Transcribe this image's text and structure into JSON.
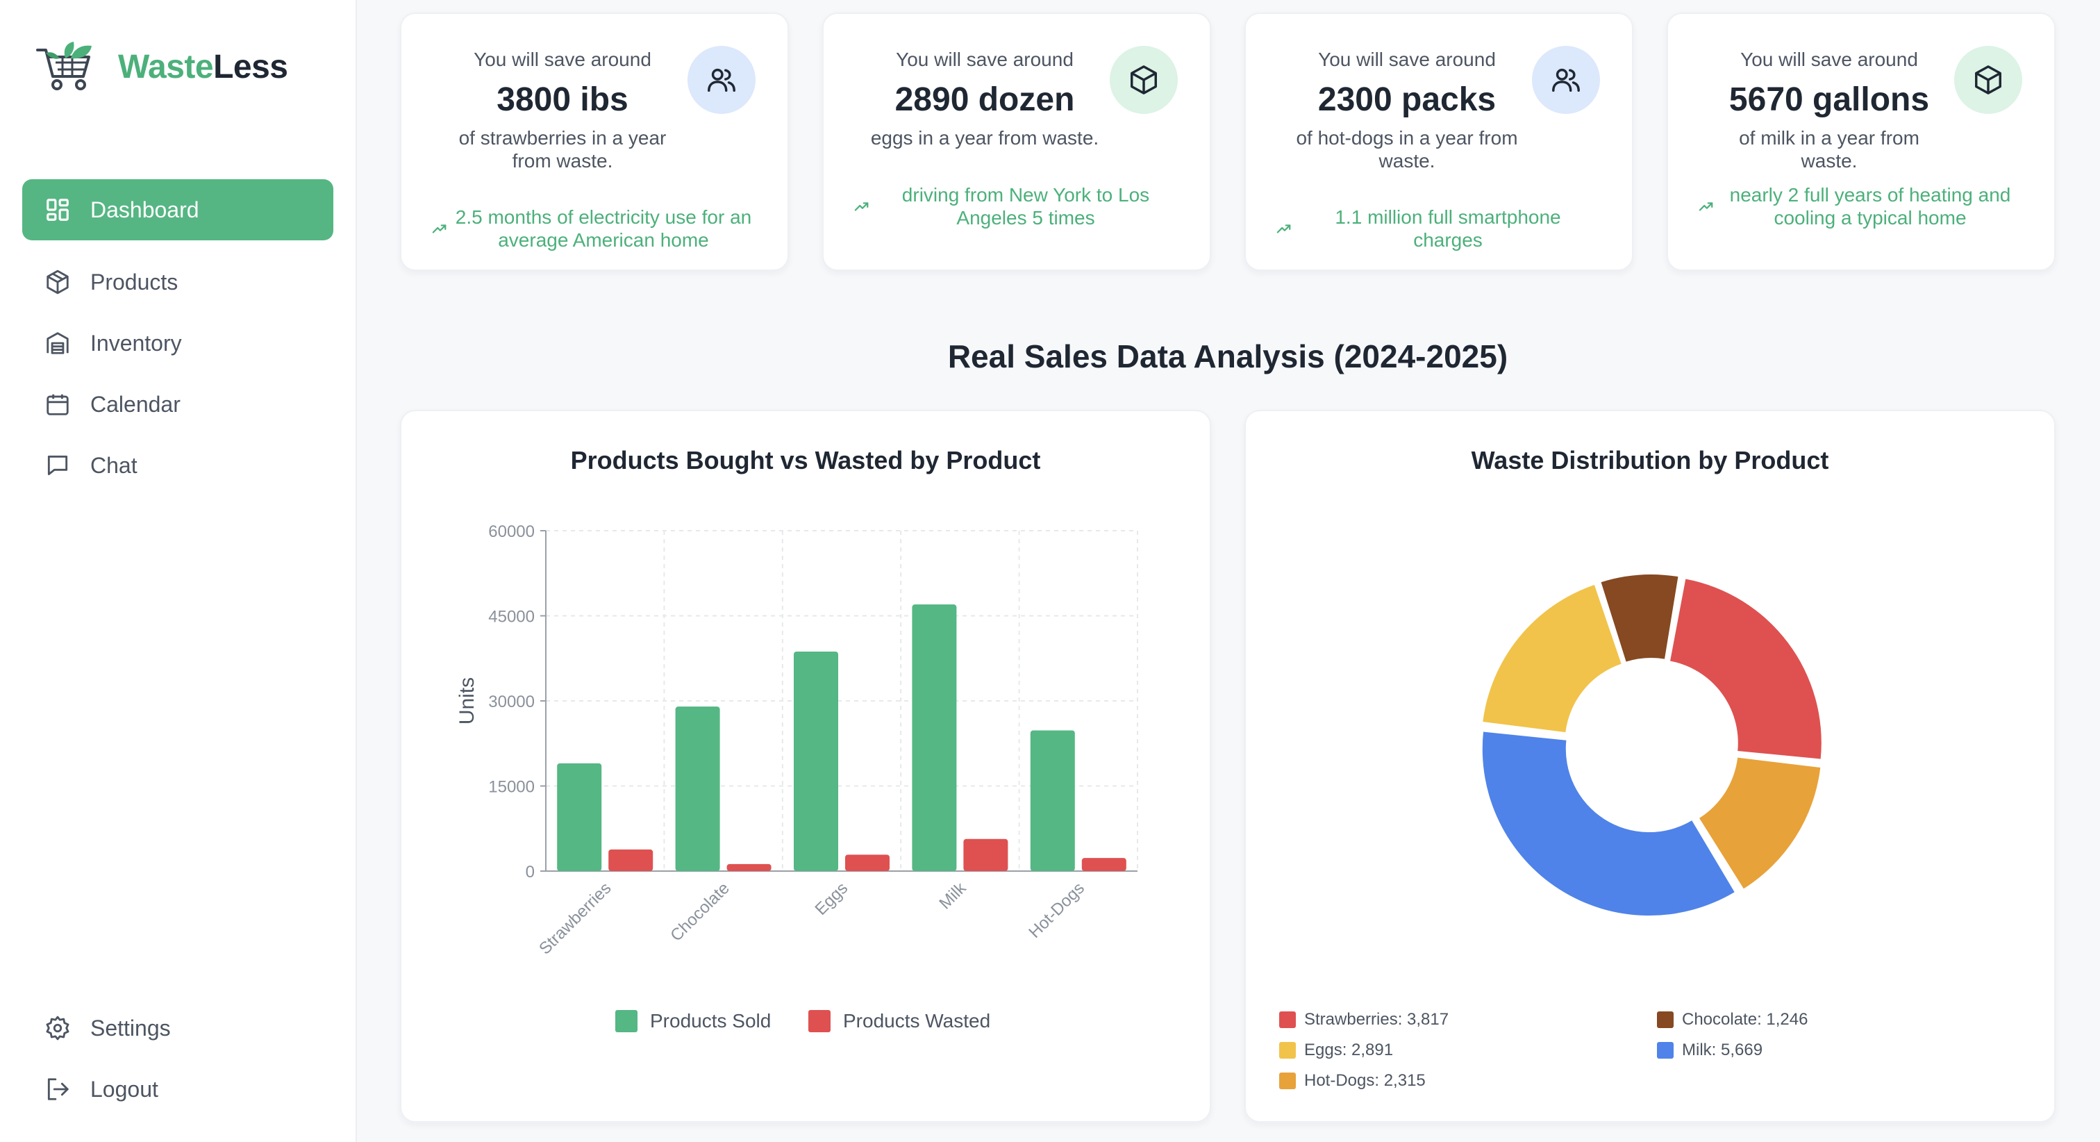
{
  "app": {
    "name_part1": "Waste",
    "name_part2": "Less"
  },
  "sidebar": {
    "items": [
      {
        "label": "Dashboard",
        "icon": "dashboard-icon",
        "active": true
      },
      {
        "label": "Products",
        "icon": "package-icon"
      },
      {
        "label": "Inventory",
        "icon": "warehouse-icon"
      },
      {
        "label": "Calendar",
        "icon": "calendar-icon"
      },
      {
        "label": "Chat",
        "icon": "chat-icon"
      }
    ],
    "bottom": [
      {
        "label": "Settings",
        "icon": "gear-icon"
      },
      {
        "label": "Logout",
        "icon": "logout-icon"
      }
    ]
  },
  "stats": [
    {
      "lead": "You will save around",
      "value": "3800 ibs",
      "desc": "of strawberries in a year from waste.",
      "compare": "2.5 months of electricity use for an average American home",
      "icon": "users-icon",
      "badge_color": "#dce8fb"
    },
    {
      "lead": "You will save around",
      "value": "2890 dozen",
      "desc": "eggs in a year from waste.",
      "compare": "driving from New York to Los Angeles 5 times",
      "icon": "cube-icon",
      "badge_color": "#dcf3e6"
    },
    {
      "lead": "You will save around",
      "value": "2300 packs",
      "desc": "of hot-dogs in a year from waste.",
      "compare": "1.1 million full smartphone charges",
      "icon": "users-icon",
      "badge_color": "#dce8fb"
    },
    {
      "lead": "You will save around",
      "value": "5670 gallons",
      "desc": "of milk in a year from waste.",
      "compare": "nearly 2 full years of heating and cooling a typical home",
      "icon": "cube-icon",
      "badge_color": "#dcf3e6"
    }
  ],
  "section_title": "Real Sales Data Analysis (2024-2025)",
  "colors": {
    "accent": "#55b683",
    "sold": "#54b784",
    "wasted": "#de5150",
    "trend": "#4cb07b"
  },
  "chart_data": [
    {
      "type": "bar",
      "title": "Products Bought vs Wasted by Product",
      "ylabel": "Units",
      "xlabel": "",
      "ylim": [
        0,
        60000
      ],
      "yticks": [
        0,
        15000,
        30000,
        45000,
        60000
      ],
      "categories": [
        "Strawberries",
        "Chocolate",
        "Eggs",
        "Milk",
        "Hot-Dogs"
      ],
      "series": [
        {
          "name": "Products Sold",
          "color": "#54b784",
          "values": [
            19000,
            29000,
            38700,
            47000,
            24800
          ]
        },
        {
          "name": "Products Wasted",
          "color": "#de5150",
          "values": [
            3817,
            1246,
            2891,
            5669,
            2315
          ]
        }
      ],
      "grid": true,
      "legend": "bottom"
    },
    {
      "type": "pie",
      "donut": true,
      "title": "Waste Distribution by Product",
      "slices": [
        {
          "label": "Strawberries",
          "display": "Strawberries: 3,817",
          "value": 3817,
          "color": "#de5150"
        },
        {
          "label": "Chocolate",
          "display": "Chocolate: 1,246",
          "value": 1246,
          "color": "#864921"
        },
        {
          "label": "Eggs",
          "display": "Eggs: 2,891",
          "value": 2891,
          "color": "#f1c34a"
        },
        {
          "label": "Milk",
          "display": "Milk: 5,669",
          "value": 5669,
          "color": "#4f83e9"
        },
        {
          "label": "Hot-Dogs",
          "display": "Hot-Dogs: 2,315",
          "value": 2315,
          "color": "#e8a23a"
        }
      ],
      "legend": "bottom"
    }
  ]
}
